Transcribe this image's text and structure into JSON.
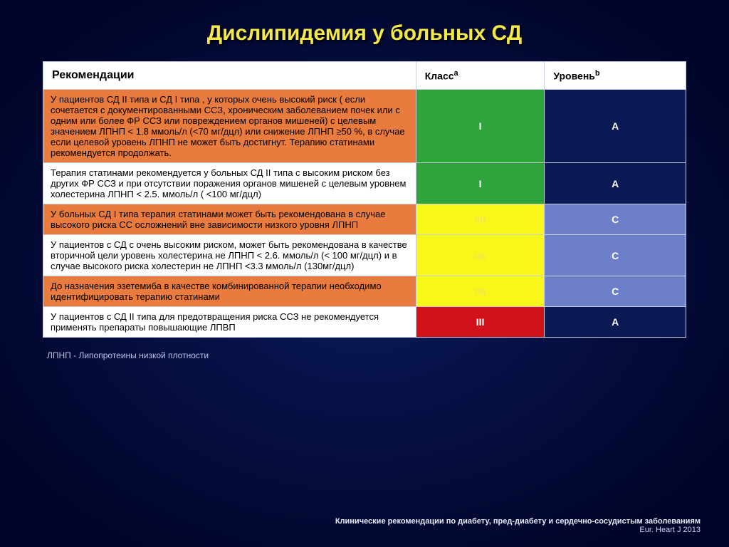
{
  "title": "Дислипидемия у больных СД",
  "headers": {
    "recommendations": "Рекомендации",
    "class": "Класс",
    "class_sup": "a",
    "level": "Уровень",
    "level_sup": "b"
  },
  "colors": {
    "rec_orange": "#e87b3d",
    "rec_white": "#ffffff",
    "class_green": "#2fa43a",
    "class_yellow": "#f7f719",
    "class_red": "#d1121b",
    "level_navy": "#0b1a55",
    "level_blue": "#6d7fc9",
    "text_white": "#ffffff",
    "text_black": "#000000",
    "text_yellow": "#f2e74a"
  },
  "rows": [
    {
      "rec": "У пациентов СД II типа и СД I типа , у которых очень высокий риск ( если сочетается с документированными ССЗ, хроническим заболеванием почек или с одним или более ФР ССЗ или повреждением органов мишеней) с целевым значением ЛПНП < 1.8 ммоль/л (<70 мг/дцл) или снижение ЛПНП  ≥50 %, в случае если целевой уровень ЛПНП не может быть достигнут. Терапию статинами рекомендуется продолжать.",
      "rec_bg": "rec_orange",
      "rec_fg": "text_black",
      "class": "I",
      "class_bg": "class_green",
      "class_fg": "text_white",
      "level": "A",
      "level_bg": "level_navy",
      "level_fg": "text_white"
    },
    {
      "rec": "Терапия статинами рекомендуется у больных СД II типа с высоким риском без других ФР ССЗ  и при отсутствии поражения органов мишеней с целевым уровнем холестерина  ЛПНП < 2.5. ммоль/л ( <100 мг/дцл)",
      "rec_bg": "rec_white",
      "rec_fg": "text_black",
      "class": "I",
      "class_bg": "class_green",
      "class_fg": "text_white",
      "level": "A",
      "level_bg": "level_navy",
      "level_fg": "text_white"
    },
    {
      "rec": "У больных СД I типа терапия статинами может быть рекомендована в случае высокого риска СС осложнений вне зависимости низкого уровня ЛПНП",
      "rec_bg": "rec_orange",
      "rec_fg": "text_black",
      "class": "IIb",
      "class_bg": "class_yellow",
      "class_fg": "text_yellow",
      "level": "C",
      "level_bg": "level_blue",
      "level_fg": "text_white"
    },
    {
      "rec": "У пациентов с СД с очень высоким риском, может быть рекомендована в качестве вторичной цели уровень холестерина не ЛПНП < 2.6. ммоль/л (< 100 мг/дцл) и в случае высокого риска холестерин не ЛПНП <3.3 ммоль/л (130мг/дцл)",
      "rec_bg": "rec_white",
      "rec_fg": "text_black",
      "class": "IIb",
      "class_bg": "class_yellow",
      "class_fg": "text_yellow",
      "level": "C",
      "level_bg": "level_blue",
      "level_fg": "text_white"
    },
    {
      "rec": "До назначения эзетемиба в качестве комбинированной терапии  необходимо идентифицировать терапию статинами",
      "rec_bg": "rec_orange",
      "rec_fg": "text_black",
      "class": "IIa",
      "class_bg": "class_yellow",
      "class_fg": "text_yellow",
      "level": "C",
      "level_bg": "level_blue",
      "level_fg": "text_white"
    },
    {
      "rec": "У пациентов с СД II типа  для предотвращения риска ССЗ не рекомендуется применять препараты повышающие ЛПВП",
      "rec_bg": "rec_white",
      "rec_fg": "text_black",
      "class": "III",
      "class_bg": "class_red",
      "class_fg": "text_white",
      "level": "A",
      "level_bg": "level_navy",
      "level_fg": "text_white"
    }
  ],
  "footnote": "ЛПНП - Липопротеины низкой плотности",
  "citation": {
    "bold": "Клинические рекомендации по диабету, пред-диабету и сердечно-сосудистым заболеваниям",
    "tail": " Eur. Heart J 2013"
  }
}
